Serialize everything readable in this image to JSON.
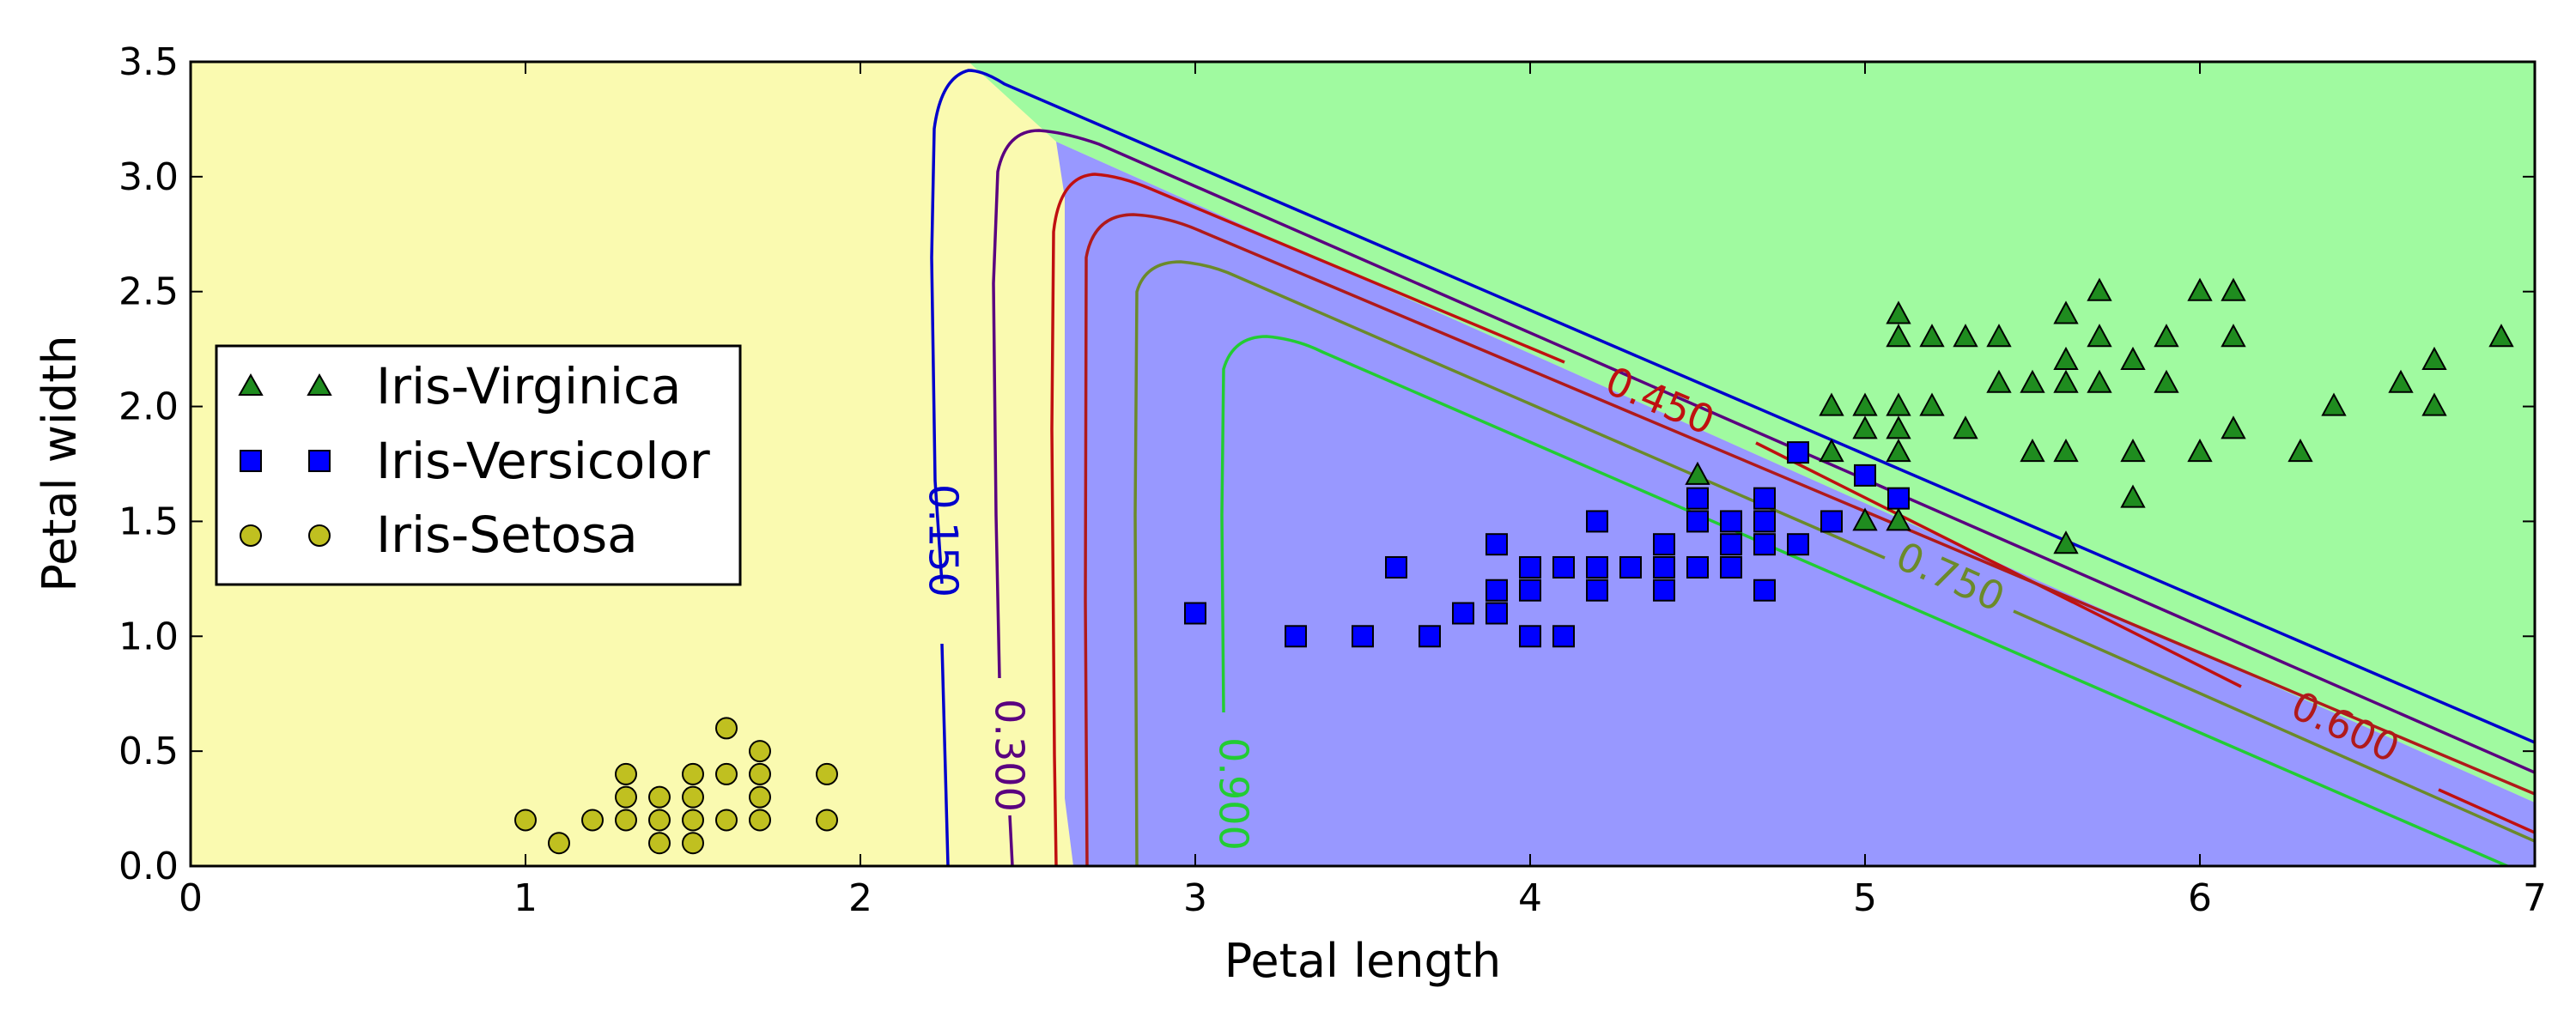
{
  "chart_data": {
    "type": "scatter",
    "xlabel": "Petal length",
    "ylabel": "Petal width",
    "xlim": [
      0,
      7
    ],
    "ylim": [
      0,
      3.5
    ],
    "xticks": [
      0,
      1,
      2,
      3,
      4,
      5,
      6,
      7
    ],
    "xtick_labels": [
      "0",
      "1",
      "2",
      "3",
      "4",
      "5",
      "6",
      "7"
    ],
    "yticks": [
      0,
      0.5,
      1,
      1.5,
      2,
      2.5,
      3,
      3.5
    ],
    "ytick_labels": [
      "0.0",
      "0.5",
      "1.0",
      "1.5",
      "2.0",
      "2.5",
      "3.0",
      "3.5"
    ],
    "legend_position": "center-left",
    "regions": [
      {
        "name": "Iris-Setosa",
        "color": "#fafab0"
      },
      {
        "name": "Iris-Versicolor",
        "color": "#9898ff"
      },
      {
        "name": "Iris-Virginica",
        "color": "#a0faa0"
      }
    ],
    "series": [
      {
        "name": "Iris-Virginica",
        "marker": "triangle",
        "color": "#1f8c1f",
        "points": [
          [
            4.5,
            1.7
          ],
          [
            4.9,
            1.8
          ],
          [
            4.9,
            2.0
          ],
          [
            5.0,
            1.5
          ],
          [
            5.0,
            1.9
          ],
          [
            5.0,
            2.0
          ],
          [
            5.1,
            1.5
          ],
          [
            5.1,
            1.8
          ],
          [
            5.1,
            1.9
          ],
          [
            5.1,
            2.0
          ],
          [
            5.1,
            2.3
          ],
          [
            5.1,
            2.4
          ],
          [
            5.2,
            2.0
          ],
          [
            5.2,
            2.3
          ],
          [
            5.3,
            1.9
          ],
          [
            5.3,
            2.3
          ],
          [
            5.4,
            2.1
          ],
          [
            5.4,
            2.3
          ],
          [
            5.5,
            1.8
          ],
          [
            5.5,
            2.1
          ],
          [
            5.6,
            1.4
          ],
          [
            5.6,
            1.8
          ],
          [
            5.6,
            2.1
          ],
          [
            5.6,
            2.2
          ],
          [
            5.6,
            2.4
          ],
          [
            5.7,
            2.1
          ],
          [
            5.7,
            2.3
          ],
          [
            5.7,
            2.5
          ],
          [
            5.8,
            1.6
          ],
          [
            5.8,
            1.8
          ],
          [
            5.8,
            2.2
          ],
          [
            5.9,
            2.1
          ],
          [
            5.9,
            2.3
          ],
          [
            6.0,
            1.8
          ],
          [
            6.0,
            2.5
          ],
          [
            6.1,
            1.9
          ],
          [
            6.1,
            2.3
          ],
          [
            6.1,
            2.5
          ],
          [
            6.3,
            1.8
          ],
          [
            6.4,
            2.0
          ],
          [
            6.6,
            2.1
          ],
          [
            6.7,
            2.0
          ],
          [
            6.7,
            2.2
          ],
          [
            6.9,
            2.3
          ]
        ]
      },
      {
        "name": "Iris-Versicolor",
        "marker": "square",
        "color": "#0000ff",
        "points": [
          [
            3.0,
            1.1
          ],
          [
            3.3,
            1.0
          ],
          [
            3.5,
            1.0
          ],
          [
            3.6,
            1.3
          ],
          [
            3.7,
            1.0
          ],
          [
            3.8,
            1.1
          ],
          [
            3.9,
            1.1
          ],
          [
            3.9,
            1.2
          ],
          [
            3.9,
            1.4
          ],
          [
            4.0,
            1.0
          ],
          [
            4.0,
            1.2
          ],
          [
            4.0,
            1.3
          ],
          [
            4.1,
            1.0
          ],
          [
            4.1,
            1.3
          ],
          [
            4.2,
            1.2
          ],
          [
            4.2,
            1.3
          ],
          [
            4.2,
            1.5
          ],
          [
            4.3,
            1.3
          ],
          [
            4.4,
            1.2
          ],
          [
            4.4,
            1.3
          ],
          [
            4.4,
            1.4
          ],
          [
            4.5,
            1.3
          ],
          [
            4.5,
            1.5
          ],
          [
            4.5,
            1.6
          ],
          [
            4.6,
            1.3
          ],
          [
            4.6,
            1.4
          ],
          [
            4.6,
            1.5
          ],
          [
            4.7,
            1.2
          ],
          [
            4.7,
            1.4
          ],
          [
            4.7,
            1.5
          ],
          [
            4.7,
            1.6
          ],
          [
            4.8,
            1.4
          ],
          [
            4.8,
            1.8
          ],
          [
            4.9,
            1.5
          ],
          [
            5.0,
            1.7
          ],
          [
            5.1,
            1.6
          ]
        ]
      },
      {
        "name": "Iris-Setosa",
        "marker": "circle",
        "color": "#c0c020",
        "points": [
          [
            1.0,
            0.2
          ],
          [
            1.1,
            0.1
          ],
          [
            1.2,
            0.2
          ],
          [
            1.3,
            0.2
          ],
          [
            1.3,
            0.3
          ],
          [
            1.3,
            0.4
          ],
          [
            1.4,
            0.1
          ],
          [
            1.4,
            0.2
          ],
          [
            1.4,
            0.3
          ],
          [
            1.5,
            0.1
          ],
          [
            1.5,
            0.2
          ],
          [
            1.5,
            0.3
          ],
          [
            1.5,
            0.4
          ],
          [
            1.6,
            0.2
          ],
          [
            1.6,
            0.4
          ],
          [
            1.6,
            0.6
          ],
          [
            1.7,
            0.2
          ],
          [
            1.7,
            0.3
          ],
          [
            1.7,
            0.4
          ],
          [
            1.7,
            0.5
          ],
          [
            1.9,
            0.2
          ],
          [
            1.9,
            0.4
          ]
        ]
      }
    ],
    "contours": [
      {
        "level": 0.15,
        "label": "0.150",
        "color": "#0000cc"
      },
      {
        "level": 0.3,
        "label": "0.300",
        "color": "#5a0080"
      },
      {
        "level": 0.45,
        "label": "0.450",
        "color": "#c01010"
      },
      {
        "level": 0.6,
        "label": "0.600",
        "color": "#b01a1a"
      },
      {
        "level": 0.75,
        "label": "0.750",
        "color": "#6b8a2a"
      },
      {
        "level": 0.9,
        "label": "0.900",
        "color": "#22cc33"
      }
    ]
  }
}
